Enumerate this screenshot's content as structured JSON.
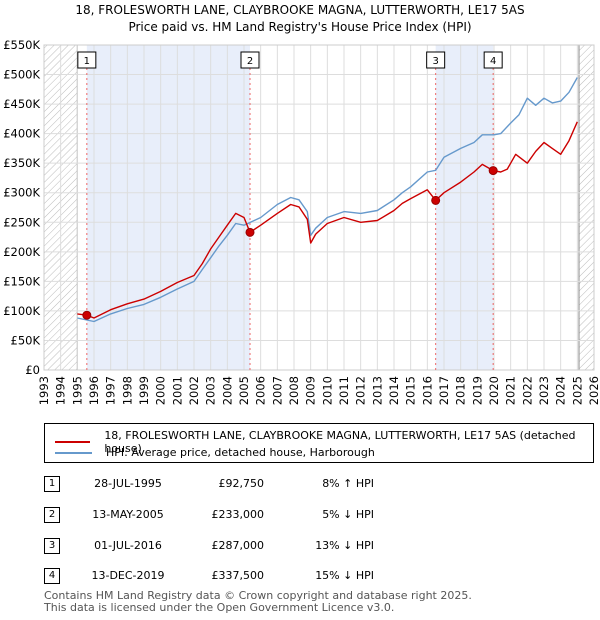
{
  "chart_data": {
    "type": "line",
    "title_line1": "18, FROLESWORTH LANE, CLAYBROOKE MAGNA, LUTTERWORTH, LE17 5AS",
    "title_line2": "Price paid vs. HM Land Registry's House Price Index (HPI)",
    "x_range": [
      1993,
      2026
    ],
    "ylim": [
      0,
      550000
    ],
    "y_ticks": [
      0,
      50000,
      100000,
      150000,
      200000,
      250000,
      300000,
      350000,
      400000,
      450000,
      500000,
      550000
    ],
    "y_tick_labels": [
      "£0",
      "£50K",
      "£100K",
      "£150K",
      "£200K",
      "£250K",
      "£300K",
      "£350K",
      "£400K",
      "£450K",
      "£500K",
      "£550K"
    ],
    "x_ticks": [
      1993,
      1994,
      1995,
      1996,
      1997,
      1998,
      1999,
      2000,
      2001,
      2002,
      2003,
      2004,
      2005,
      2006,
      2007,
      2008,
      2009,
      2010,
      2011,
      2012,
      2013,
      2014,
      2015,
      2016,
      2017,
      2018,
      2019,
      2020,
      2021,
      2022,
      2023,
      2024,
      2025,
      2026
    ],
    "x_tick_labels": [
      "1993",
      "1994",
      "1995",
      "1996",
      "1997",
      "1998",
      "1999",
      "2000",
      "2001",
      "2002",
      "2003",
      "2004",
      "2005",
      "2006",
      "2007",
      "2008",
      "2009",
      "2010",
      "2011",
      "2012",
      "2013",
      "2014",
      "2015",
      "2016",
      "2017",
      "2018",
      "2019",
      "2020",
      "2021",
      "2022",
      "2023",
      "2024",
      "2025",
      "2026"
    ],
    "hatched_ranges": [
      [
        1993,
        1995.0
      ],
      [
        2025.1,
        2026
      ]
    ],
    "shaded_ranges": [
      [
        1995.57,
        2005.36
      ],
      [
        2016.5,
        2019.95
      ]
    ],
    "series": [
      {
        "name": "18, FROLESWORTH LANE, CLAYBROOKE MAGNA, LUTTERWORTH, LE17 5AS (detached house)",
        "color": "#cc0000",
        "x": [
          1995.0,
          1995.57,
          1996.0,
          1997.0,
          1998.0,
          1999.0,
          2000.0,
          2001.0,
          2002.0,
          2002.5,
          2003.0,
          2003.5,
          2004.0,
          2004.5,
          2005.0,
          2005.36,
          2006.0,
          2007.0,
          2007.8,
          2008.3,
          2008.8,
          2009.0,
          2009.3,
          2010.0,
          2011.0,
          2012.0,
          2013.0,
          2014.0,
          2014.5,
          2015.0,
          2016.0,
          2016.5,
          2017.0,
          2018.0,
          2018.8,
          2019.3,
          2019.95,
          2020.4,
          2020.8,
          2021.3,
          2022.0,
          2022.5,
          2023.0,
          2023.5,
          2024.0,
          2024.5,
          2025.0
        ],
        "values": [
          95000,
          92750,
          88000,
          102000,
          112000,
          120000,
          133000,
          148000,
          160000,
          180000,
          205000,
          225000,
          245000,
          265000,
          258000,
          233000,
          245000,
          265000,
          280000,
          276000,
          255000,
          215000,
          230000,
          248000,
          258000,
          250000,
          253000,
          270000,
          282000,
          290000,
          305000,
          287000,
          300000,
          318000,
          335000,
          348000,
          337500,
          335000,
          340000,
          365000,
          350000,
          370000,
          385000,
          375000,
          365000,
          388000,
          420000
        ]
      },
      {
        "name": "HPI: Average price, detached house, Harborough",
        "color": "#6699cc",
        "x": [
          1995.0,
          1996.0,
          1997.0,
          1998.0,
          1999.0,
          2000.0,
          2001.0,
          2002.0,
          2002.5,
          2003.0,
          2003.5,
          2004.0,
          2004.5,
          2005.0,
          2006.0,
          2007.0,
          2007.8,
          2008.3,
          2008.8,
          2009.0,
          2009.3,
          2010.0,
          2011.0,
          2012.0,
          2013.0,
          2014.0,
          2014.5,
          2015.0,
          2016.0,
          2016.5,
          2017.0,
          2018.0,
          2018.8,
          2019.3,
          2020.0,
          2020.4,
          2021.0,
          2021.5,
          2022.0,
          2022.5,
          2023.0,
          2023.5,
          2024.0,
          2024.5,
          2025.0
        ],
        "values": [
          88000,
          82000,
          95000,
          104000,
          111000,
          123000,
          137000,
          150000,
          170000,
          190000,
          210000,
          228000,
          248000,
          245000,
          258000,
          280000,
          292000,
          288000,
          268000,
          228000,
          240000,
          258000,
          268000,
          265000,
          270000,
          288000,
          300000,
          310000,
          335000,
          338000,
          360000,
          375000,
          385000,
          398000,
          398000,
          400000,
          418000,
          432000,
          460000,
          448000,
          460000,
          452000,
          455000,
          470000,
          495000
        ]
      }
    ],
    "sales": [
      {
        "label": "1",
        "year": 1995.57,
        "price": 92750
      },
      {
        "label": "2",
        "year": 2005.36,
        "price": 233000
      },
      {
        "label": "3",
        "year": 2016.5,
        "price": 287000
      },
      {
        "label": "4",
        "year": 2019.95,
        "price": 337500
      }
    ]
  },
  "legend": {
    "property_label": "18, FROLESWORTH LANE, CLAYBROOKE MAGNA, LUTTERWORTH, LE17 5AS (detached house)",
    "hpi_label": "HPI: Average price, detached house, Harborough",
    "property_color": "#cc0000",
    "hpi_color": "#6699cc"
  },
  "table": [
    {
      "num": "1",
      "date": "28-JUL-1995",
      "price": "£92,750",
      "diff": "8% ↑ HPI"
    },
    {
      "num": "2",
      "date": "13-MAY-2005",
      "price": "£233,000",
      "diff": "5% ↓ HPI"
    },
    {
      "num": "3",
      "date": "01-JUL-2016",
      "price": "£287,000",
      "diff": "13% ↓ HPI"
    },
    {
      "num": "4",
      "date": "13-DEC-2019",
      "price": "£337,500",
      "diff": "15% ↓ HPI"
    }
  ],
  "footer": {
    "line1": "Contains HM Land Registry data © Crown copyright and database right 2025.",
    "line2": "This data is licensed under the Open Government Licence v3.0."
  }
}
